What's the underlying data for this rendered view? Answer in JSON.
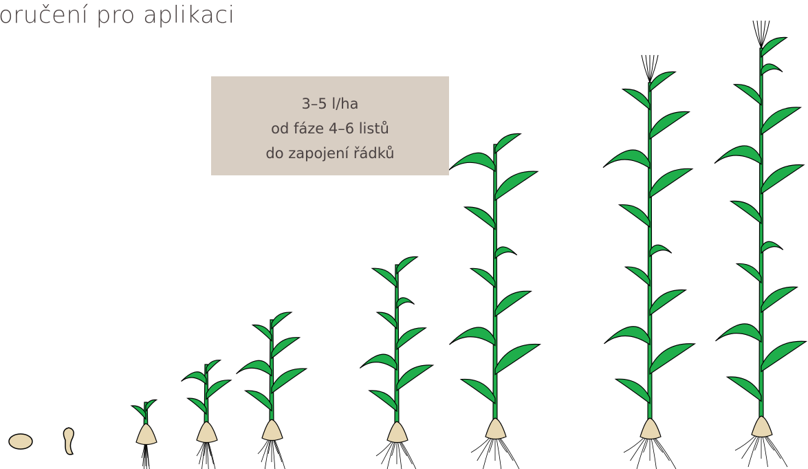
{
  "header": {
    "title": "oručení pro aplikaci"
  },
  "note": {
    "lines": [
      "3–5 l/ha",
      "od fáze 4–6 listů",
      "do zapojení řádků"
    ]
  }
}
